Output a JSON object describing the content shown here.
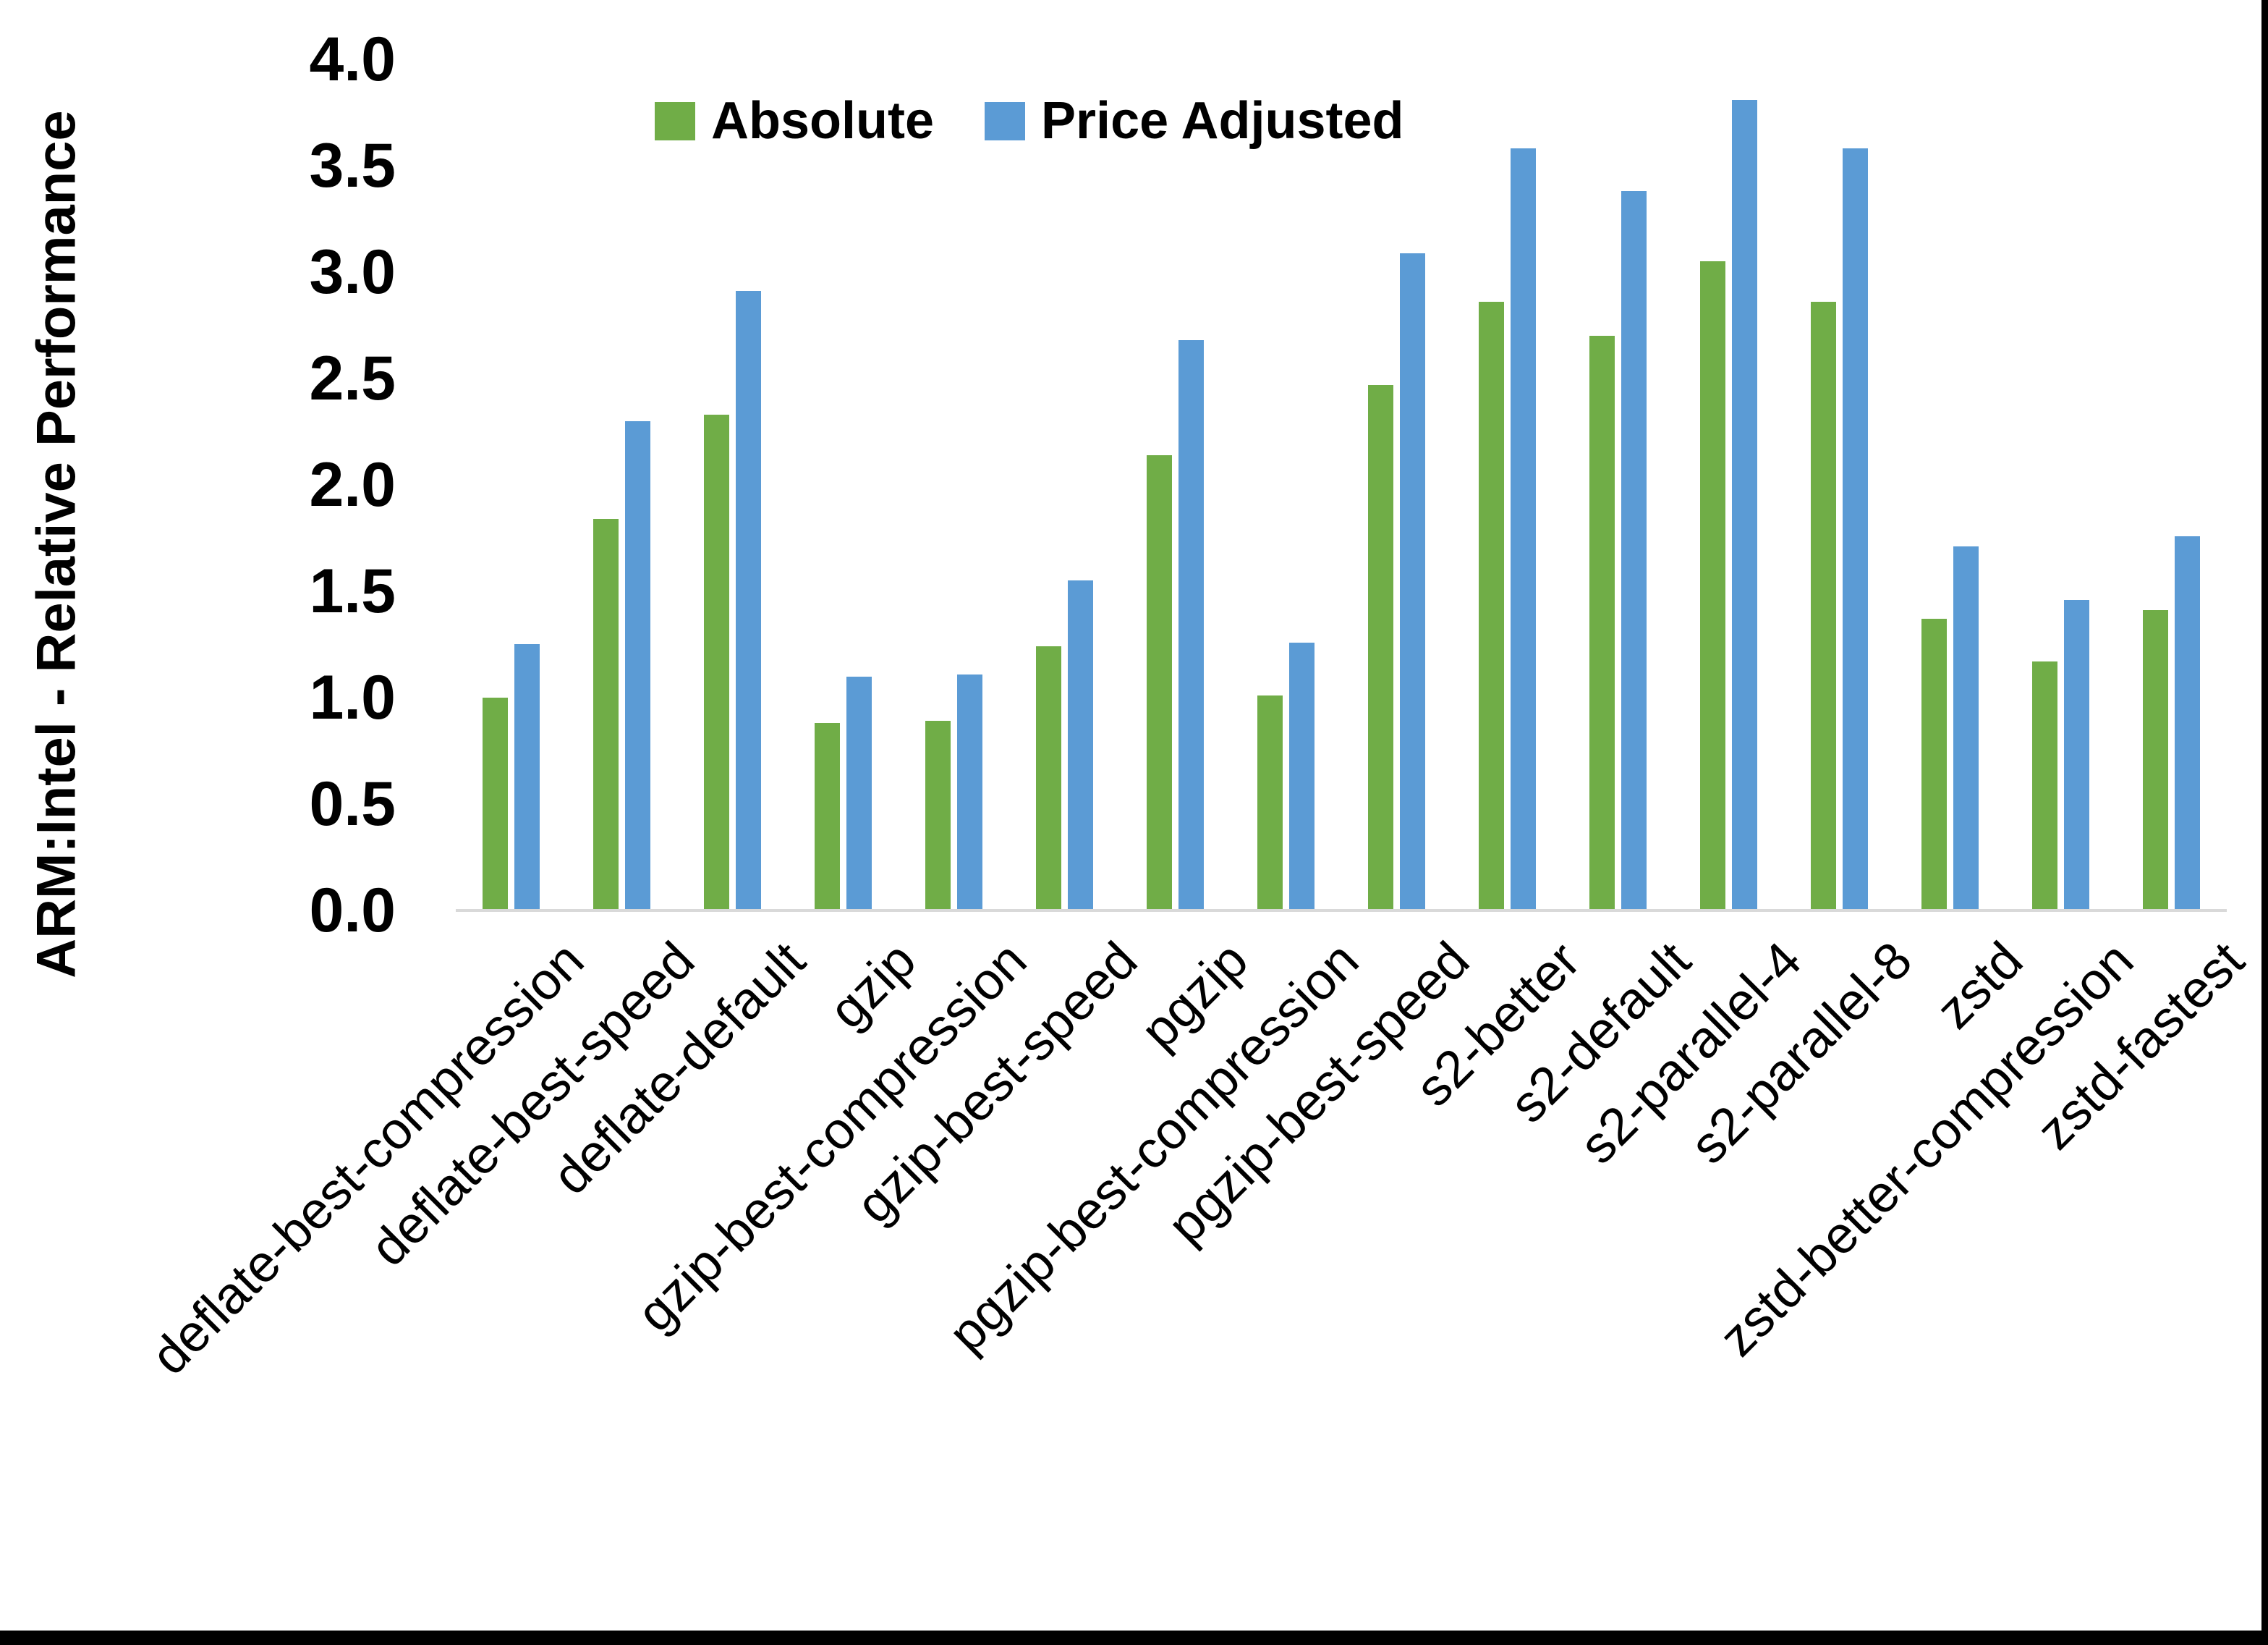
{
  "figure": {
    "background": "#FFFFFF",
    "edge_border_color": "#000000"
  },
  "chart_data": {
    "type": "bar",
    "title": "",
    "ylabel": "ARM:Intel - Relative Performance",
    "xlabel": "",
    "ylim": [
      0.0,
      4.0
    ],
    "ytick_labels": [
      "0.0",
      "0.5",
      "1.0",
      "1.5",
      "2.0",
      "2.5",
      "3.0",
      "3.5",
      "4.0"
    ],
    "grid": false,
    "legend_position": "top-center",
    "axis_line_color": "#D9D9D9",
    "categories": [
      "deflate-best-compression",
      "deflate-best-speed",
      "deflate-default",
      "gzip",
      "gzip-best-compression",
      "gzip-best-speed",
      "pgzip",
      "pgzip-best-compression",
      "pgzip-best-speed",
      "s2-better",
      "s2-default",
      "s2-parallel-4",
      "s2-parallel-8",
      "zstd",
      "zstd-better-compression",
      "zstd-fastest"
    ],
    "series": [
      {
        "name": "Absolute",
        "color": "#70AD47",
        "values": [
          1.0,
          1.84,
          2.33,
          0.88,
          0.89,
          1.24,
          2.14,
          1.01,
          2.47,
          2.86,
          2.7,
          3.05,
          2.86,
          1.37,
          1.17,
          1.41
        ]
      },
      {
        "name": "Price Adjusted",
        "color": "#5B9BD5",
        "values": [
          1.25,
          2.3,
          2.91,
          1.1,
          1.11,
          1.55,
          2.68,
          1.26,
          3.09,
          3.58,
          3.38,
          3.81,
          3.58,
          1.71,
          1.46,
          1.76
        ]
      }
    ]
  }
}
